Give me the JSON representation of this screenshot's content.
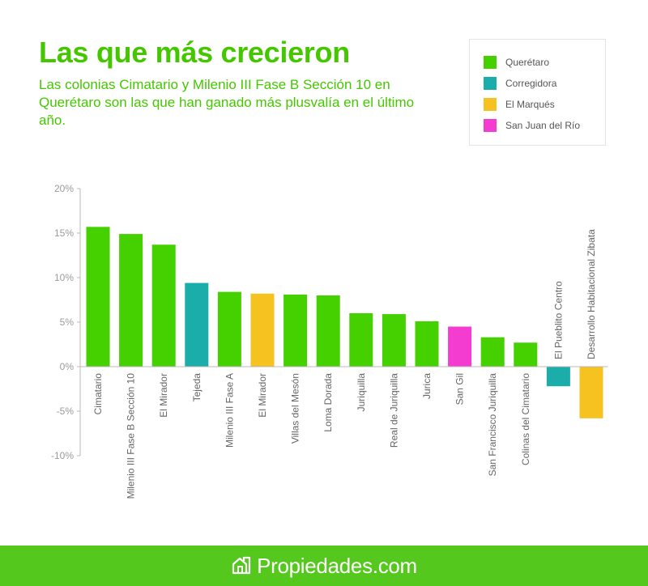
{
  "title": "Las que más crecieron",
  "subtitle": "Las colonias Cimatario y Milenio III Fase B Sección 10 en Querétaro son las que han ganado más plusvalía en el último año.",
  "legend": [
    {
      "name": "Querétaro",
      "color": "#45d000"
    },
    {
      "name": "Corregidora",
      "color": "#1aada9"
    },
    {
      "name": "El Marqués",
      "color": "#f5c220"
    },
    {
      "name": "San Juan del Río",
      "color": "#f43cd0"
    }
  ],
  "footer": {
    "brand": "Propiedades.com",
    "icon": "house-logo-icon",
    "background": "#55c81e"
  },
  "chart_data": {
    "type": "bar",
    "title": "",
    "xlabel": "",
    "ylabel": "",
    "ylim": [
      -10,
      20
    ],
    "yticks": [
      20,
      15,
      10,
      5,
      0,
      -5,
      -10
    ],
    "ytick_labels": [
      "20%",
      "15%",
      "10%",
      "5%",
      "0%",
      "-5%",
      "-10%"
    ],
    "grid": false,
    "legend_position": "top-right",
    "categories": [
      "Cimatario",
      "Milenio III Fase B Sección 10",
      "El Mirador",
      "Tejeda",
      "Milenio III Fase A",
      "El Mirador",
      "Villas del Mesón",
      "Loma Dorada",
      "Juriquilla",
      "Real de Juriquilla",
      "Jurica",
      "San Gil",
      "San Francisco Juriquilla",
      "Colinas del Cimatario",
      "El Pueblito Centro",
      "Desarrollo Habitacional Zibata"
    ],
    "values": [
      15.7,
      14.9,
      13.7,
      9.4,
      8.4,
      8.2,
      8.1,
      8.0,
      6.0,
      5.9,
      5.1,
      4.5,
      3.3,
      2.7,
      -2.2,
      -5.8
    ],
    "groups": [
      "Querétaro",
      "Querétaro",
      "Querétaro",
      "Corregidora",
      "Querétaro",
      "El Marqués",
      "Querétaro",
      "Querétaro",
      "Querétaro",
      "Querétaro",
      "Querétaro",
      "San Juan del Río",
      "Querétaro",
      "Querétaro",
      "Corregidora",
      "El Marqués"
    ]
  }
}
